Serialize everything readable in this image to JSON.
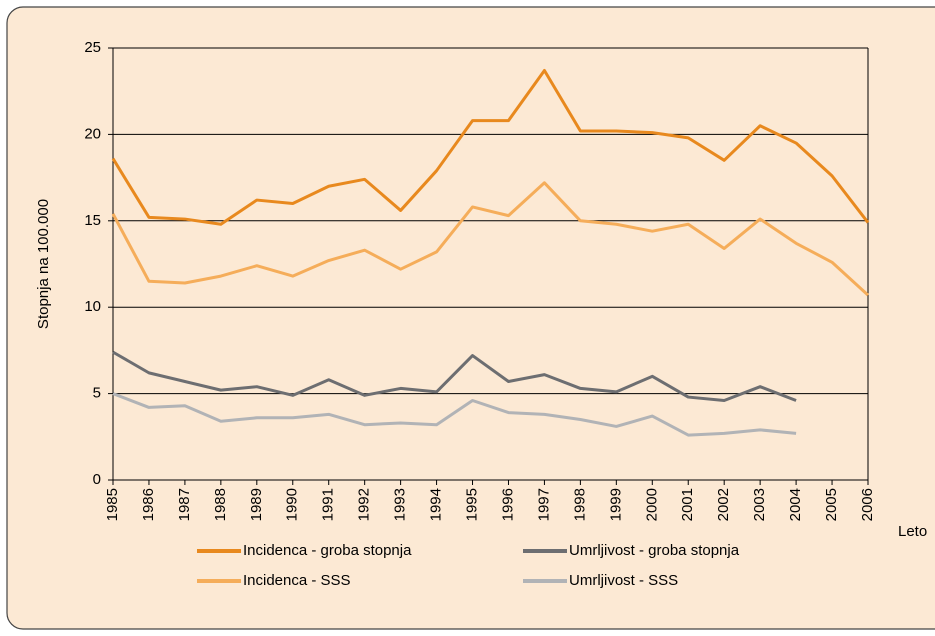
{
  "chart_data": {
    "type": "line",
    "ylabel": "Stopnja na 100.000",
    "xlabel": "Leto",
    "categories": [
      "1985",
      "1986",
      "1987",
      "1988",
      "1989",
      "1990",
      "1991",
      "1992",
      "1993",
      "1994",
      "1995",
      "1996",
      "1997",
      "1998",
      "1999",
      "2000",
      "2001",
      "2002",
      "2003",
      "2004",
      "2005",
      "2006"
    ],
    "series": [
      {
        "name": "Incidenca - groba stopnja",
        "color": "#e8891e",
        "values": [
          18.6,
          15.2,
          15.1,
          14.8,
          16.2,
          16.0,
          17.0,
          17.4,
          15.6,
          17.9,
          20.8,
          20.8,
          23.7,
          20.2,
          20.2,
          20.1,
          19.8,
          18.5,
          20.5,
          19.5,
          17.6,
          14.9
        ]
      },
      {
        "name": "Umrljivost - groba stopnja",
        "color": "#6d6e71",
        "values": [
          7.4,
          6.2,
          5.7,
          5.2,
          5.4,
          4.9,
          5.8,
          4.9,
          5.3,
          5.1,
          7.2,
          5.7,
          6.1,
          5.3,
          5.1,
          6.0,
          4.8,
          4.6,
          5.4,
          4.6,
          null,
          null
        ]
      },
      {
        "name": "Incidenca - SSS",
        "color": "#f5ad5a",
        "values": [
          15.4,
          11.5,
          11.4,
          11.8,
          12.4,
          11.8,
          12.7,
          13.3,
          12.2,
          13.2,
          15.8,
          15.3,
          17.2,
          15.0,
          14.8,
          14.4,
          14.8,
          13.4,
          15.1,
          13.7,
          12.6,
          10.7
        ]
      },
      {
        "name": "Umrljivost - SSS",
        "color": "#b1b3b6",
        "values": [
          5.0,
          4.2,
          4.3,
          3.4,
          3.6,
          3.6,
          3.8,
          3.2,
          3.3,
          3.2,
          4.6,
          3.9,
          3.8,
          3.5,
          3.1,
          3.7,
          2.6,
          2.7,
          2.9,
          2.7,
          null,
          null
        ]
      }
    ],
    "ylim": [
      0,
      25
    ],
    "yticks": [
      0,
      5,
      10,
      15,
      20,
      25
    ],
    "grid": true
  }
}
